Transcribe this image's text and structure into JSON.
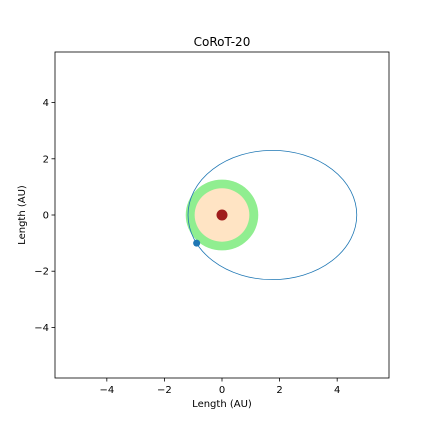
{
  "chart_data": {
    "type": "scatter",
    "title": "CoRoT-20",
    "xlabel": "Length (AU)",
    "ylabel": "Length (AU)",
    "xlim": [
      -5.8,
      5.8
    ],
    "ylim": [
      -5.8,
      5.8
    ],
    "xticks": [
      -4,
      -2,
      0,
      2,
      4
    ],
    "yticks": [
      -4,
      -2,
      0,
      2,
      4
    ],
    "xtick_labels": [
      "−4",
      "−2",
      "0",
      "2",
      "4"
    ],
    "ytick_labels": [
      "−4",
      "−2",
      "0",
      "2",
      "4"
    ],
    "grid": false,
    "habitable_zone": {
      "outer_radius_au": 1.26,
      "inner_radius_au": 0.95,
      "outer_color": "#90ee90",
      "inner_color": "#ffe4c4"
    },
    "star": {
      "x": 0,
      "y": 0,
      "color": "#a01c1c"
    },
    "orbit": {
      "center_x": 1.75,
      "center_y": 0,
      "semi_major_au": 2.93,
      "semi_minor_au": 2.3,
      "color": "#1f77b4"
    },
    "planet": {
      "x": -0.88,
      "y": -1.0,
      "color": "#1f77b4"
    }
  }
}
